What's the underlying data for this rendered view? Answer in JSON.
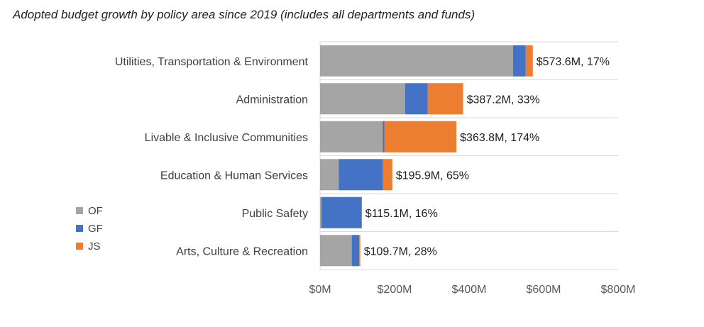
{
  "chart_data": {
    "type": "bar",
    "orientation": "horizontal",
    "stacked": true,
    "title": "Adopted budget growth by policy area since 2019 (includes all departments and funds)",
    "categories": [
      "Utilities, Transportation & Environment",
      "Administration",
      "Livable & Inclusive Communities",
      "Education & Human Services",
      "Public Safety",
      "Arts, Culture & Recreation"
    ],
    "series": [
      {
        "name": "OF",
        "color": "#a5a5a5",
        "values": [
          518,
          228,
          168,
          50,
          4,
          85
        ]
      },
      {
        "name": "GF",
        "color": "#4472c4",
        "values": [
          34,
          61,
          5,
          119,
          108,
          20
        ]
      },
      {
        "name": "JS",
        "color": "#ed7d31",
        "values": [
          19,
          95,
          193,
          25,
          0,
          3
        ]
      }
    ],
    "data_labels": [
      "$573.6M, 17%",
      "$387.2M, 33%",
      "$363.8M, 174%",
      "$195.9M, 65%",
      "$115.1M, 16%",
      "$109.7M, 28%"
    ],
    "x_ticks": [
      "$0M",
      "$200M",
      "$400M",
      "$600M",
      "$800M"
    ],
    "xlim": [
      0,
      800
    ],
    "legend_position": "left",
    "gridlines": "horizontal separators between categories"
  }
}
